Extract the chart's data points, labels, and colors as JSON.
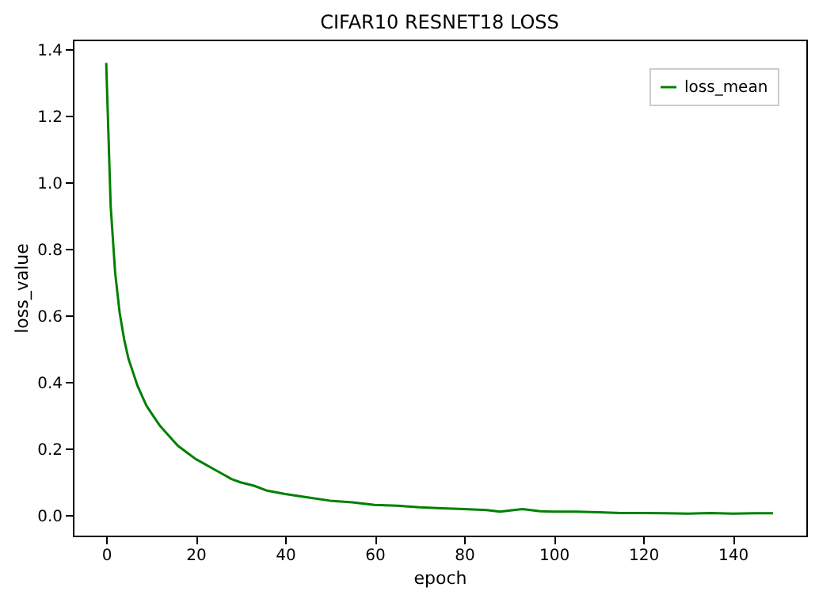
{
  "chart_data": {
    "type": "line",
    "title": "CIFAR10 RESNET18 LOSS",
    "xlabel": "epoch",
    "ylabel": "loss_value",
    "xlim": [
      -7.45,
      156.45
    ],
    "xticks": [
      0,
      20,
      40,
      60,
      80,
      100,
      120,
      140
    ],
    "ylim": [
      -0.06,
      1.43
    ],
    "yticks": [
      {
        "value": 0,
        "label": "0.0"
      },
      0.2,
      0.4,
      0.6,
      0.8,
      {
        "value": 1,
        "label": "1.0"
      },
      1.2,
      1.4
    ],
    "grid": false,
    "legend": "top right",
    "marker": "none",
    "line_style": "solid",
    "series": [
      {
        "name": "loss_mean",
        "color": "#008000",
        "x": [
          0,
          1,
          2,
          3,
          4,
          5,
          6,
          7,
          8,
          9,
          10,
          12,
          14,
          16,
          18,
          20,
          22,
          24,
          26,
          28,
          30,
          33,
          36,
          40,
          45,
          50,
          55,
          60,
          65,
          70,
          75,
          80,
          85,
          88,
          93,
          97,
          100,
          105,
          110,
          115,
          120,
          125,
          130,
          135,
          140,
          145,
          149
        ],
        "values": [
          1.36,
          0.93,
          0.73,
          0.61,
          0.53,
          0.47,
          0.43,
          0.39,
          0.36,
          0.33,
          0.31,
          0.27,
          0.24,
          0.21,
          0.19,
          0.17,
          0.155,
          0.14,
          0.125,
          0.11,
          0.1,
          0.09,
          0.075,
          0.065,
          0.055,
          0.045,
          0.04,
          0.032,
          0.03,
          0.025,
          0.022,
          0.02,
          0.017,
          0.012,
          0.02,
          0.013,
          0.012,
          0.012,
          0.01,
          0.008,
          0.008,
          0.007,
          0.006,
          0.008,
          0.006,
          0.007,
          0.007
        ]
      }
    ]
  }
}
